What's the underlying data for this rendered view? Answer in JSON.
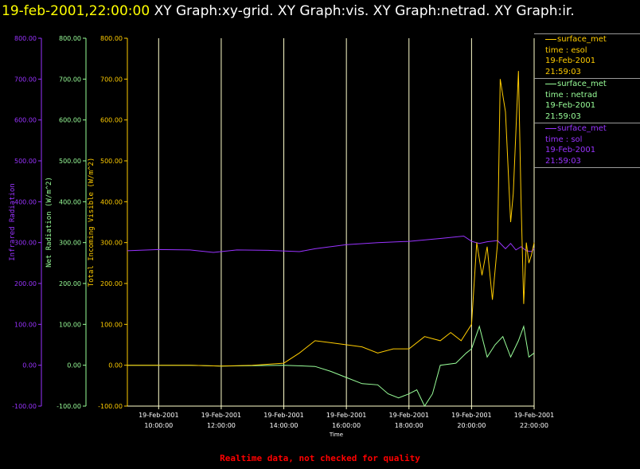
{
  "header": {
    "timestamp": "19-feb-2001,22:00:00",
    "graphs": "XY Graph:xy-grid.  XY Graph:vis.  XY Graph:netrad.  XY Graph:ir."
  },
  "footer": {
    "note": "Realtime data, not checked for quality"
  },
  "legend": [
    {
      "source": "surface_met",
      "field": "time : esol",
      "date": "19-Feb-2001",
      "time": "21:59:03",
      "color": "#ffcc00"
    },
    {
      "source": "surface_met",
      "field": "time : netrad",
      "date": "19-Feb-2001",
      "time": "21:59:03",
      "color": "#99ff99"
    },
    {
      "source": "surface_met",
      "field": "time : sol",
      "date": "19-Feb-2001",
      "time": "21:59:03",
      "color": "#9933ff"
    }
  ],
  "chart_data": {
    "type": "line",
    "xlabel": "Time",
    "xlim": [
      "19-Feb-2001 09:00:00",
      "19-Feb-2001 22:00:00"
    ],
    "x_ticks": [
      {
        "date": "19-Feb-2001",
        "time": "10:00:00"
      },
      {
        "date": "19-Feb-2001",
        "time": "12:00:00"
      },
      {
        "date": "19-Feb-2001",
        "time": "14:00:00"
      },
      {
        "date": "19-Feb-2001",
        "time": "16:00:00"
      },
      {
        "date": "19-Feb-2001",
        "time": "18:00:00"
      },
      {
        "date": "19-Feb-2001",
        "time": "20:00:00"
      },
      {
        "date": "19-Feb-2001",
        "time": "22:00:00"
      }
    ],
    "grid": "vertical",
    "axes": [
      {
        "id": "ir",
        "label": "Infrared Radiation",
        "color": "#9933ff",
        "ylim": [
          -100,
          800
        ],
        "ticks": [
          "-100.00",
          "0.00",
          "100.00",
          "200.00",
          "300.00",
          "400.00",
          "500.00",
          "600.00",
          "700.00",
          "800.00"
        ]
      },
      {
        "id": "netrad",
        "label": "Net Radiation (W/m^2)",
        "color": "#99ff99",
        "ylim": [
          -100,
          800
        ],
        "ticks": [
          "-100.00",
          "0.00",
          "100.00",
          "200.00",
          "300.00",
          "400.00",
          "500.00",
          "600.00",
          "700.00",
          "800.00"
        ]
      },
      {
        "id": "vis",
        "label": "Total Incoming Visible (W/m^2)",
        "color": "#ffcc00",
        "ylim": [
          -100,
          800
        ],
        "ticks": [
          "-100.00",
          "0.00",
          "100.00",
          "200.00",
          "300.00",
          "400.00",
          "500.00",
          "600.00",
          "700.00",
          "800.00"
        ]
      }
    ],
    "series": [
      {
        "name": "time : sol",
        "axis": "ir",
        "color": "#9933ff",
        "x": [
          "19-Feb-2001 09:00",
          "19-Feb-2001 10:00",
          "19-Feb-2001 11:00",
          "19-Feb-2001 11:45",
          "19-Feb-2001 12:30",
          "19-Feb-2001 13:30",
          "19-Feb-2001 14:30",
          "19-Feb-2001 15:00",
          "19-Feb-2001 16:00",
          "19-Feb-2001 17:00",
          "19-Feb-2001 18:00",
          "19-Feb-2001 19:00",
          "19-Feb-2001 19:45",
          "19-Feb-2001 20:00",
          "19-Feb-2001 20:15",
          "19-Feb-2001 20:30",
          "19-Feb-2001 20:50",
          "19-Feb-2001 21:05",
          "19-Feb-2001 21:15",
          "19-Feb-2001 21:25",
          "19-Feb-2001 21:35",
          "19-Feb-2001 21:45",
          "19-Feb-2001 21:55",
          "19-Feb-2001 22:00"
        ],
        "y": [
          280,
          283,
          282,
          276,
          282,
          281,
          278,
          285,
          295,
          300,
          303,
          310,
          316,
          303,
          298,
          302,
          305,
          285,
          298,
          282,
          290,
          280,
          278,
          285
        ]
      },
      {
        "name": "time : netrad",
        "axis": "netrad",
        "color": "#99ff99",
        "x": [
          "19-Feb-2001 09:00",
          "19-Feb-2001 10:00",
          "19-Feb-2001 11:00",
          "19-Feb-2001 12:00",
          "19-Feb-2001 13:00",
          "19-Feb-2001 14:00",
          "19-Feb-2001 15:00",
          "19-Feb-2001 15:30",
          "19-Feb-2001 16:00",
          "19-Feb-2001 16:30",
          "19-Feb-2001 17:00",
          "19-Feb-2001 17:20",
          "19-Feb-2001 17:40",
          "19-Feb-2001 18:00",
          "19-Feb-2001 18:15",
          "19-Feb-2001 18:30",
          "19-Feb-2001 18:45",
          "19-Feb-2001 19:00",
          "19-Feb-2001 19:30",
          "19-Feb-2001 19:50",
          "19-Feb-2001 20:00",
          "19-Feb-2001 20:15",
          "19-Feb-2001 20:30",
          "19-Feb-2001 20:45",
          "19-Feb-2001 21:00",
          "19-Feb-2001 21:15",
          "19-Feb-2001 21:30",
          "19-Feb-2001 21:40",
          "19-Feb-2001 21:50",
          "19-Feb-2001 22:00"
        ],
        "y": [
          0,
          0,
          0,
          -2,
          -1,
          0,
          -3,
          -15,
          -30,
          -45,
          -48,
          -70,
          -80,
          -70,
          -60,
          -100,
          -70,
          0,
          5,
          30,
          40,
          95,
          20,
          50,
          70,
          20,
          60,
          95,
          20,
          30
        ]
      },
      {
        "name": "time : esol",
        "axis": "vis",
        "color": "#ffcc00",
        "x": [
          "19-Feb-2001 09:00",
          "19-Feb-2001 10:00",
          "19-Feb-2001 11:00",
          "19-Feb-2001 12:00",
          "19-Feb-2001 13:00",
          "19-Feb-2001 14:00",
          "19-Feb-2001 14:30",
          "19-Feb-2001 15:00",
          "19-Feb-2001 15:30",
          "19-Feb-2001 16:00",
          "19-Feb-2001 16:30",
          "19-Feb-2001 17:00",
          "19-Feb-2001 17:30",
          "19-Feb-2001 18:00",
          "19-Feb-2001 18:30",
          "19-Feb-2001 19:00",
          "19-Feb-2001 19:20",
          "19-Feb-2001 19:40",
          "19-Feb-2001 20:00",
          "19-Feb-2001 20:10",
          "19-Feb-2001 20:20",
          "19-Feb-2001 20:30",
          "19-Feb-2001 20:40",
          "19-Feb-2001 20:50",
          "19-Feb-2001 20:55",
          "19-Feb-2001 21:05",
          "19-Feb-2001 21:15",
          "19-Feb-2001 21:20",
          "19-Feb-2001 21:30",
          "19-Feb-2001 21:35",
          "19-Feb-2001 21:40",
          "19-Feb-2001 21:45",
          "19-Feb-2001 21:50",
          "19-Feb-2001 21:55",
          "19-Feb-2001 22:00"
        ],
        "y": [
          0,
          0,
          0,
          -2,
          0,
          5,
          30,
          60,
          55,
          50,
          45,
          30,
          40,
          40,
          70,
          60,
          80,
          60,
          100,
          300,
          220,
          290,
          160,
          300,
          700,
          620,
          350,
          420,
          720,
          400,
          150,
          300,
          250,
          270,
          300
        ]
      }
    ]
  }
}
